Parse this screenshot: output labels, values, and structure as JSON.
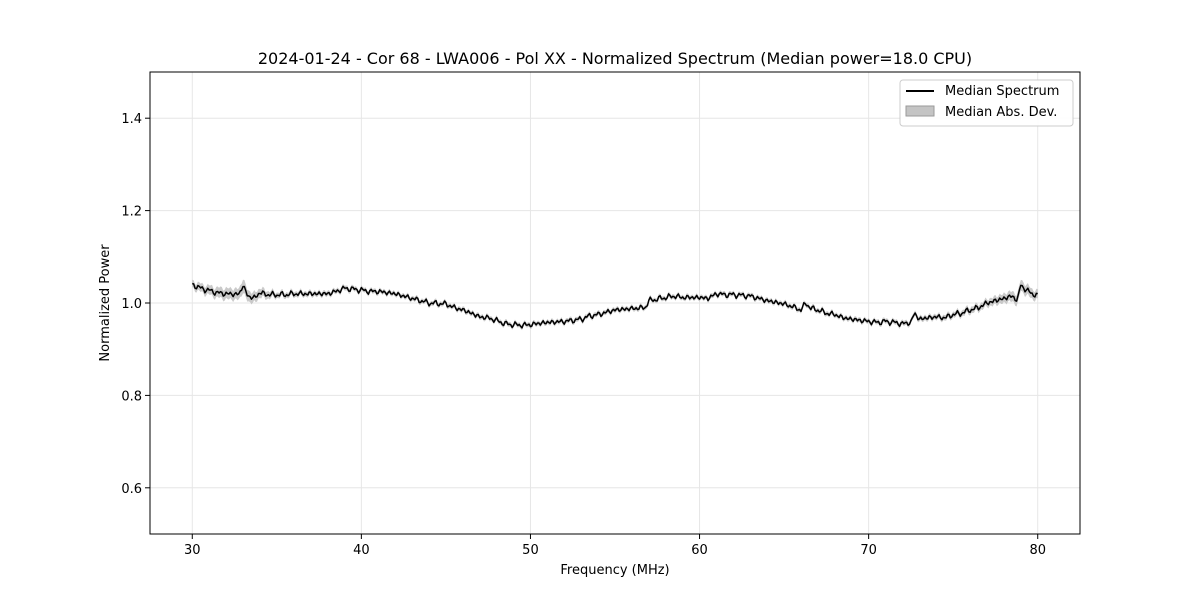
{
  "chart_data": {
    "type": "line",
    "title": "2024-01-24 - Cor 68 - LWA006 - Pol XX - Normalized Spectrum (Median power=18.0 CPU)",
    "xlabel": "Frequency (MHz)",
    "ylabel": "Normalized Power",
    "xlim": [
      27.5,
      82.5
    ],
    "ylim": [
      0.5,
      1.5
    ],
    "xticks": [
      30,
      40,
      50,
      60,
      70,
      80
    ],
    "xtick_labels": [
      "30",
      "40",
      "50",
      "60",
      "70",
      "80"
    ],
    "yticks": [
      0.6,
      0.8,
      1.0,
      1.2,
      1.4
    ],
    "ytick_labels": [
      "0.6",
      "0.8",
      "1.0",
      "1.2",
      "1.4"
    ],
    "grid": true,
    "legend_position": "top-right",
    "legend": [
      {
        "label": "Median Spectrum",
        "kind": "line",
        "color": "#000000"
      },
      {
        "label": "Median Abs. Dev.",
        "kind": "band",
        "color": "#c4c4c4"
      }
    ],
    "series": [
      {
        "name": "Median Spectrum",
        "color": "#000000",
        "x": [
          30,
          30.5,
          31,
          31.5,
          32,
          32.5,
          32.8,
          33,
          33.3,
          33.6,
          34,
          34.5,
          35,
          35.5,
          36,
          37,
          38,
          38.5,
          39,
          39.5,
          40,
          40.5,
          41,
          42,
          43,
          44,
          45,
          45.5,
          46,
          46.5,
          47,
          47.5,
          48,
          48.5,
          49,
          49.5,
          50,
          50.5,
          51,
          52,
          53,
          53.5,
          54,
          54.5,
          55,
          56,
          56.8,
          57,
          58,
          58.5,
          59,
          60,
          60.5,
          61,
          61.5,
          62,
          63,
          64,
          65,
          65.5,
          66,
          66.3,
          66.6,
          67,
          67.5,
          68,
          68.5,
          69,
          70,
          70.5,
          71,
          71.5,
          72,
          72.5,
          72.7,
          73,
          73.5,
          74,
          74.5,
          75,
          75.5,
          76,
          76.5,
          77,
          77.5,
          78,
          78.5,
          78.8,
          79,
          79.3,
          79.6,
          80
        ],
        "values": [
          1.04,
          1.032,
          1.027,
          1.022,
          1.02,
          1.019,
          1.02,
          1.038,
          1.015,
          1.01,
          1.022,
          1.018,
          1.018,
          1.018,
          1.02,
          1.02,
          1.02,
          1.025,
          1.032,
          1.03,
          1.028,
          1.025,
          1.025,
          1.02,
          1.01,
          1.0,
          0.998,
          0.99,
          0.985,
          0.978,
          0.97,
          0.968,
          0.962,
          0.955,
          0.953,
          0.952,
          0.953,
          0.956,
          0.958,
          0.96,
          0.965,
          0.972,
          0.975,
          0.98,
          0.985,
          0.988,
          0.99,
          1.005,
          1.012,
          1.015,
          1.012,
          1.012,
          1.01,
          1.02,
          1.018,
          1.018,
          1.015,
          1.005,
          0.998,
          0.992,
          0.985,
          1.0,
          0.988,
          0.985,
          0.978,
          0.975,
          0.968,
          0.965,
          0.96,
          0.958,
          0.96,
          0.958,
          0.955,
          0.958,
          0.978,
          0.965,
          0.968,
          0.97,
          0.968,
          0.975,
          0.978,
          0.985,
          0.99,
          1.0,
          1.005,
          1.01,
          1.015,
          1.005,
          1.04,
          1.028,
          1.022,
          1.015
        ]
      },
      {
        "name": "Median Abs. Dev.",
        "color": "#c4c4c4",
        "x": [
          30,
          31,
          32,
          32.8,
          33,
          33.3,
          34,
          35,
          40,
          50,
          60,
          70,
          75,
          77,
          78,
          79,
          80
        ],
        "half_width": [
          0.008,
          0.01,
          0.012,
          0.012,
          0.015,
          0.012,
          0.01,
          0.006,
          0.005,
          0.005,
          0.005,
          0.005,
          0.006,
          0.008,
          0.01,
          0.012,
          0.01
        ]
      }
    ]
  }
}
